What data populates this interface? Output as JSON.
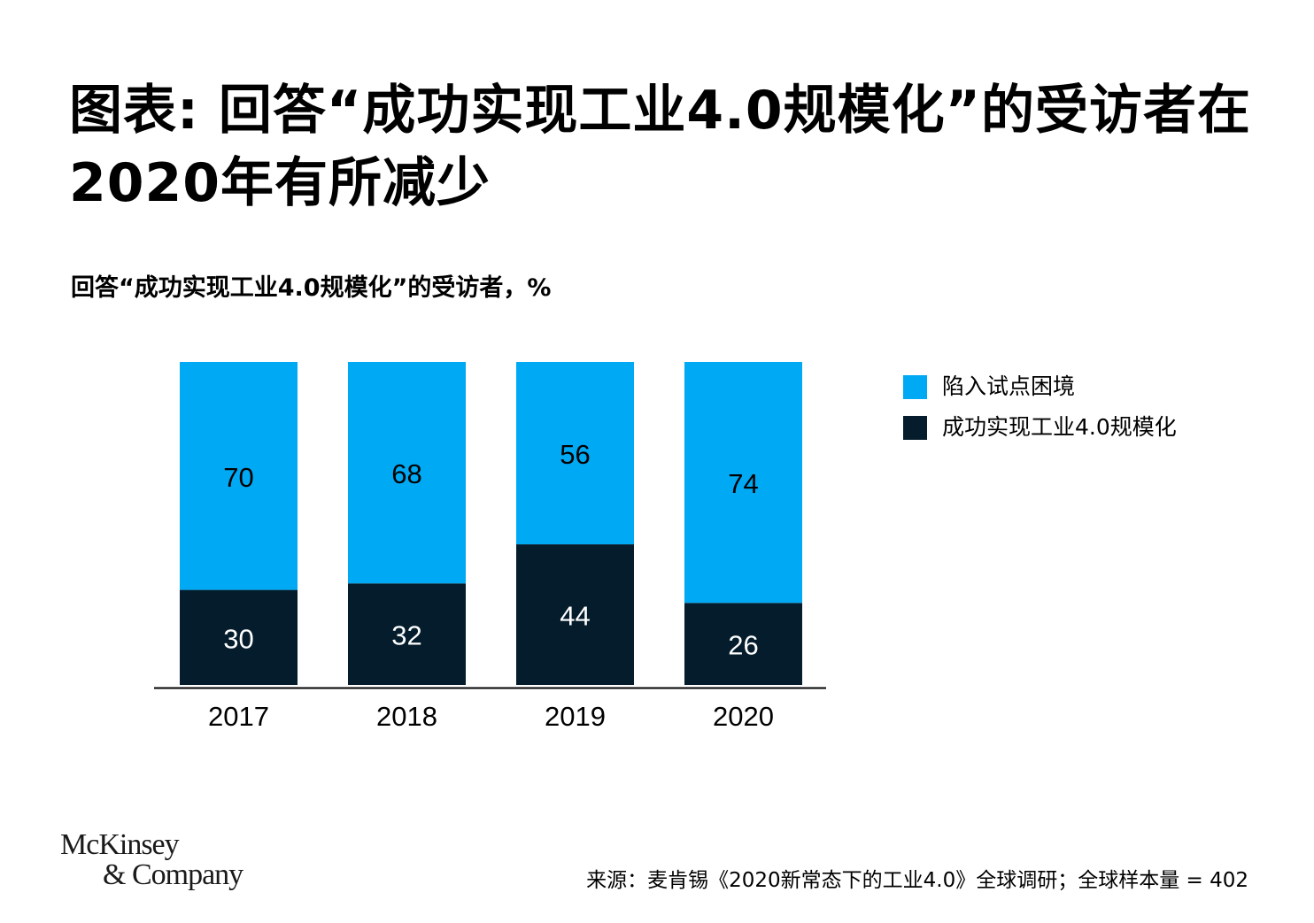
{
  "title": "图表: 回答“成功实现工业4.0规模化”的受访者在2020年有所减少",
  "subtitle": "回答“成功实现工业4.0规模化”的受访者，%",
  "colors": {
    "pilot": "#00A9F4",
    "scale": "#051C2C",
    "axis": "#000000"
  },
  "chart_data": {
    "type": "bar",
    "stacked": true,
    "categories": [
      "2017",
      "2018",
      "2019",
      "2020"
    ],
    "series": [
      {
        "name": "成功实现工业4.0规模化",
        "values": [
          30,
          32,
          44,
          26
        ]
      },
      {
        "name": "陷入试点困境",
        "values": [
          70,
          68,
          56,
          74
        ]
      }
    ],
    "ylim": [
      0,
      100
    ],
    "grid": false,
    "legend_position": "right"
  },
  "legend": {
    "items": [
      {
        "label": "陷入试点困境"
      },
      {
        "label": "成功实现工业4.0规模化"
      }
    ]
  },
  "logo": {
    "line1": "McKinsey",
    "line2": "& Company"
  },
  "source": "来源：麦肯锡《2020新常态下的工业4.0》全球调研；全球样本量 = 402"
}
